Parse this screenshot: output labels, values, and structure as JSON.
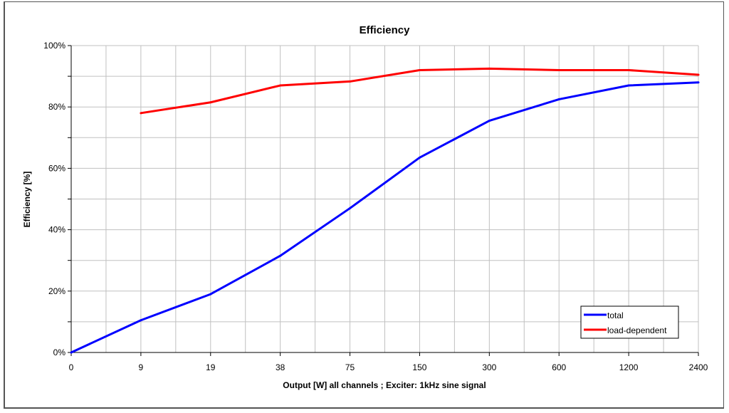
{
  "chart_data": {
    "type": "line",
    "title": "Efficiency",
    "xlabel": "Output [W]  all channels  ;  Exciter: 1kHz sine signal",
    "ylabel": "Efficiency [%]",
    "categories": [
      "0",
      "9",
      "19",
      "38",
      "75",
      "150",
      "300",
      "600",
      "1200",
      "2400"
    ],
    "yticks": [
      "0%",
      "20%",
      "40%",
      "60%",
      "80%",
      "100%"
    ],
    "ylim": [
      0,
      100
    ],
    "grid": true,
    "legend_position": "bottom-right",
    "series": [
      {
        "name": "total",
        "color": "#0000ff",
        "values": [
          0,
          10.5,
          19,
          31.5,
          47,
          63.5,
          75.5,
          82.5,
          87,
          88
        ]
      },
      {
        "name": "load-dependent",
        "color": "#ff0000",
        "values": [
          null,
          78,
          81.5,
          87,
          88.3,
          92,
          92.5,
          92,
          92,
          90.5
        ]
      }
    ]
  }
}
